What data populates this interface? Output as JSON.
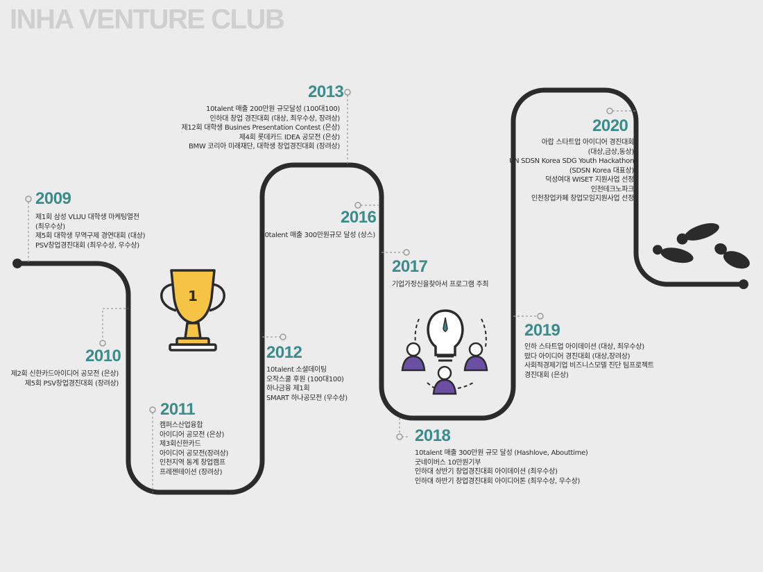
{
  "title": "INHA VENTURE CLUB",
  "colors": {
    "year": "#3a8b8b",
    "path": "#2b2b2b",
    "title": "#cfcfcf",
    "connector": "#9a9a9a",
    "trophy_gold": "#f6c445",
    "people_purple": "#6b4fa3"
  },
  "icons": [
    "trophy-icon",
    "idea-team-icon",
    "footprints-icon"
  ],
  "trophy_number": "1",
  "milestones": [
    {
      "year": "2009",
      "lines": [
        "제1회 삼성 VLUU 대학생 마케팅열전",
        "(최우수상)",
        "제5회 대학생 무역구제 경연대회 (대상)",
        "PSV창업경진대회 (최우수상, 우수상)"
      ]
    },
    {
      "year": "2010",
      "lines": [
        "제2회 신한카드아이디어 공모전 (은상)",
        "제5회 PSV창업경진대회 (장려상)"
      ]
    },
    {
      "year": "2011",
      "lines": [
        "캠퍼스산업융합",
        "아이디어 공모전 (은상)",
        "제3회신한카드",
        "아이디어 공모전(장려상)",
        "인천지역 동계 창업캠프",
        "프레젠테이션 (장려상)"
      ]
    },
    {
      "year": "2012",
      "lines": [
        "10talent 소셜데이팅",
        "오작스쿨 후원 (100대100)",
        "하나금융 제1회",
        "SMART 하나공모전 (우수상)"
      ]
    },
    {
      "year": "2013",
      "lines": [
        "10talent 매출 200만원 규모달성 (100대100)",
        "인하대 창업 경진대회 (대상, 최우수상, 장려상)",
        "제12회 대학생 Busines Presentation Contest (은상)",
        "제4회 롯데카드 IDEA 공모전 (은상)",
        "BMW 코리아 미래재단, 대학생 창업경진대회 (장려상)"
      ]
    },
    {
      "year": "2016",
      "lines": [
        "10talent 매출 300만원규모 달성 (상스)"
      ]
    },
    {
      "year": "2017",
      "lines": [
        "기업가정신을찾아서 프로그램 주최"
      ]
    },
    {
      "year": "2018",
      "lines": [
        "10talent  매출 300만원 규모 달성 (Hashlove, Abouttime)",
        "굿네이버스 10만원기부",
        "인하대 상반기 창업경진대회 아이데이션 (최우수상)",
        "인하대 하반기 창업경진대회 아이디어톤 (최우수상, 우수상)"
      ]
    },
    {
      "year": "2019",
      "lines": [
        "인하 스타트업 아이데이션 (대상, 최우수상)",
        "떴다 아이디어 경진대회 (대상,장려상)",
        "사회적경제기업 비즈니스모델 진단 팀프로젝트",
        "경진대회 (은상)"
      ]
    },
    {
      "year": "2020",
      "lines": [
        "아랍 스타트업 아이디어 경진대회",
        "(대상,금상,동상)",
        "UN SDSN Korea SDG Youth Hackathon",
        "(SDSN Korea 대표상)",
        "덕성여대 WISET 지원사업 선정",
        "인천테크노파크",
        "인천창업카페 창업모임지원사업 선정"
      ]
    }
  ]
}
